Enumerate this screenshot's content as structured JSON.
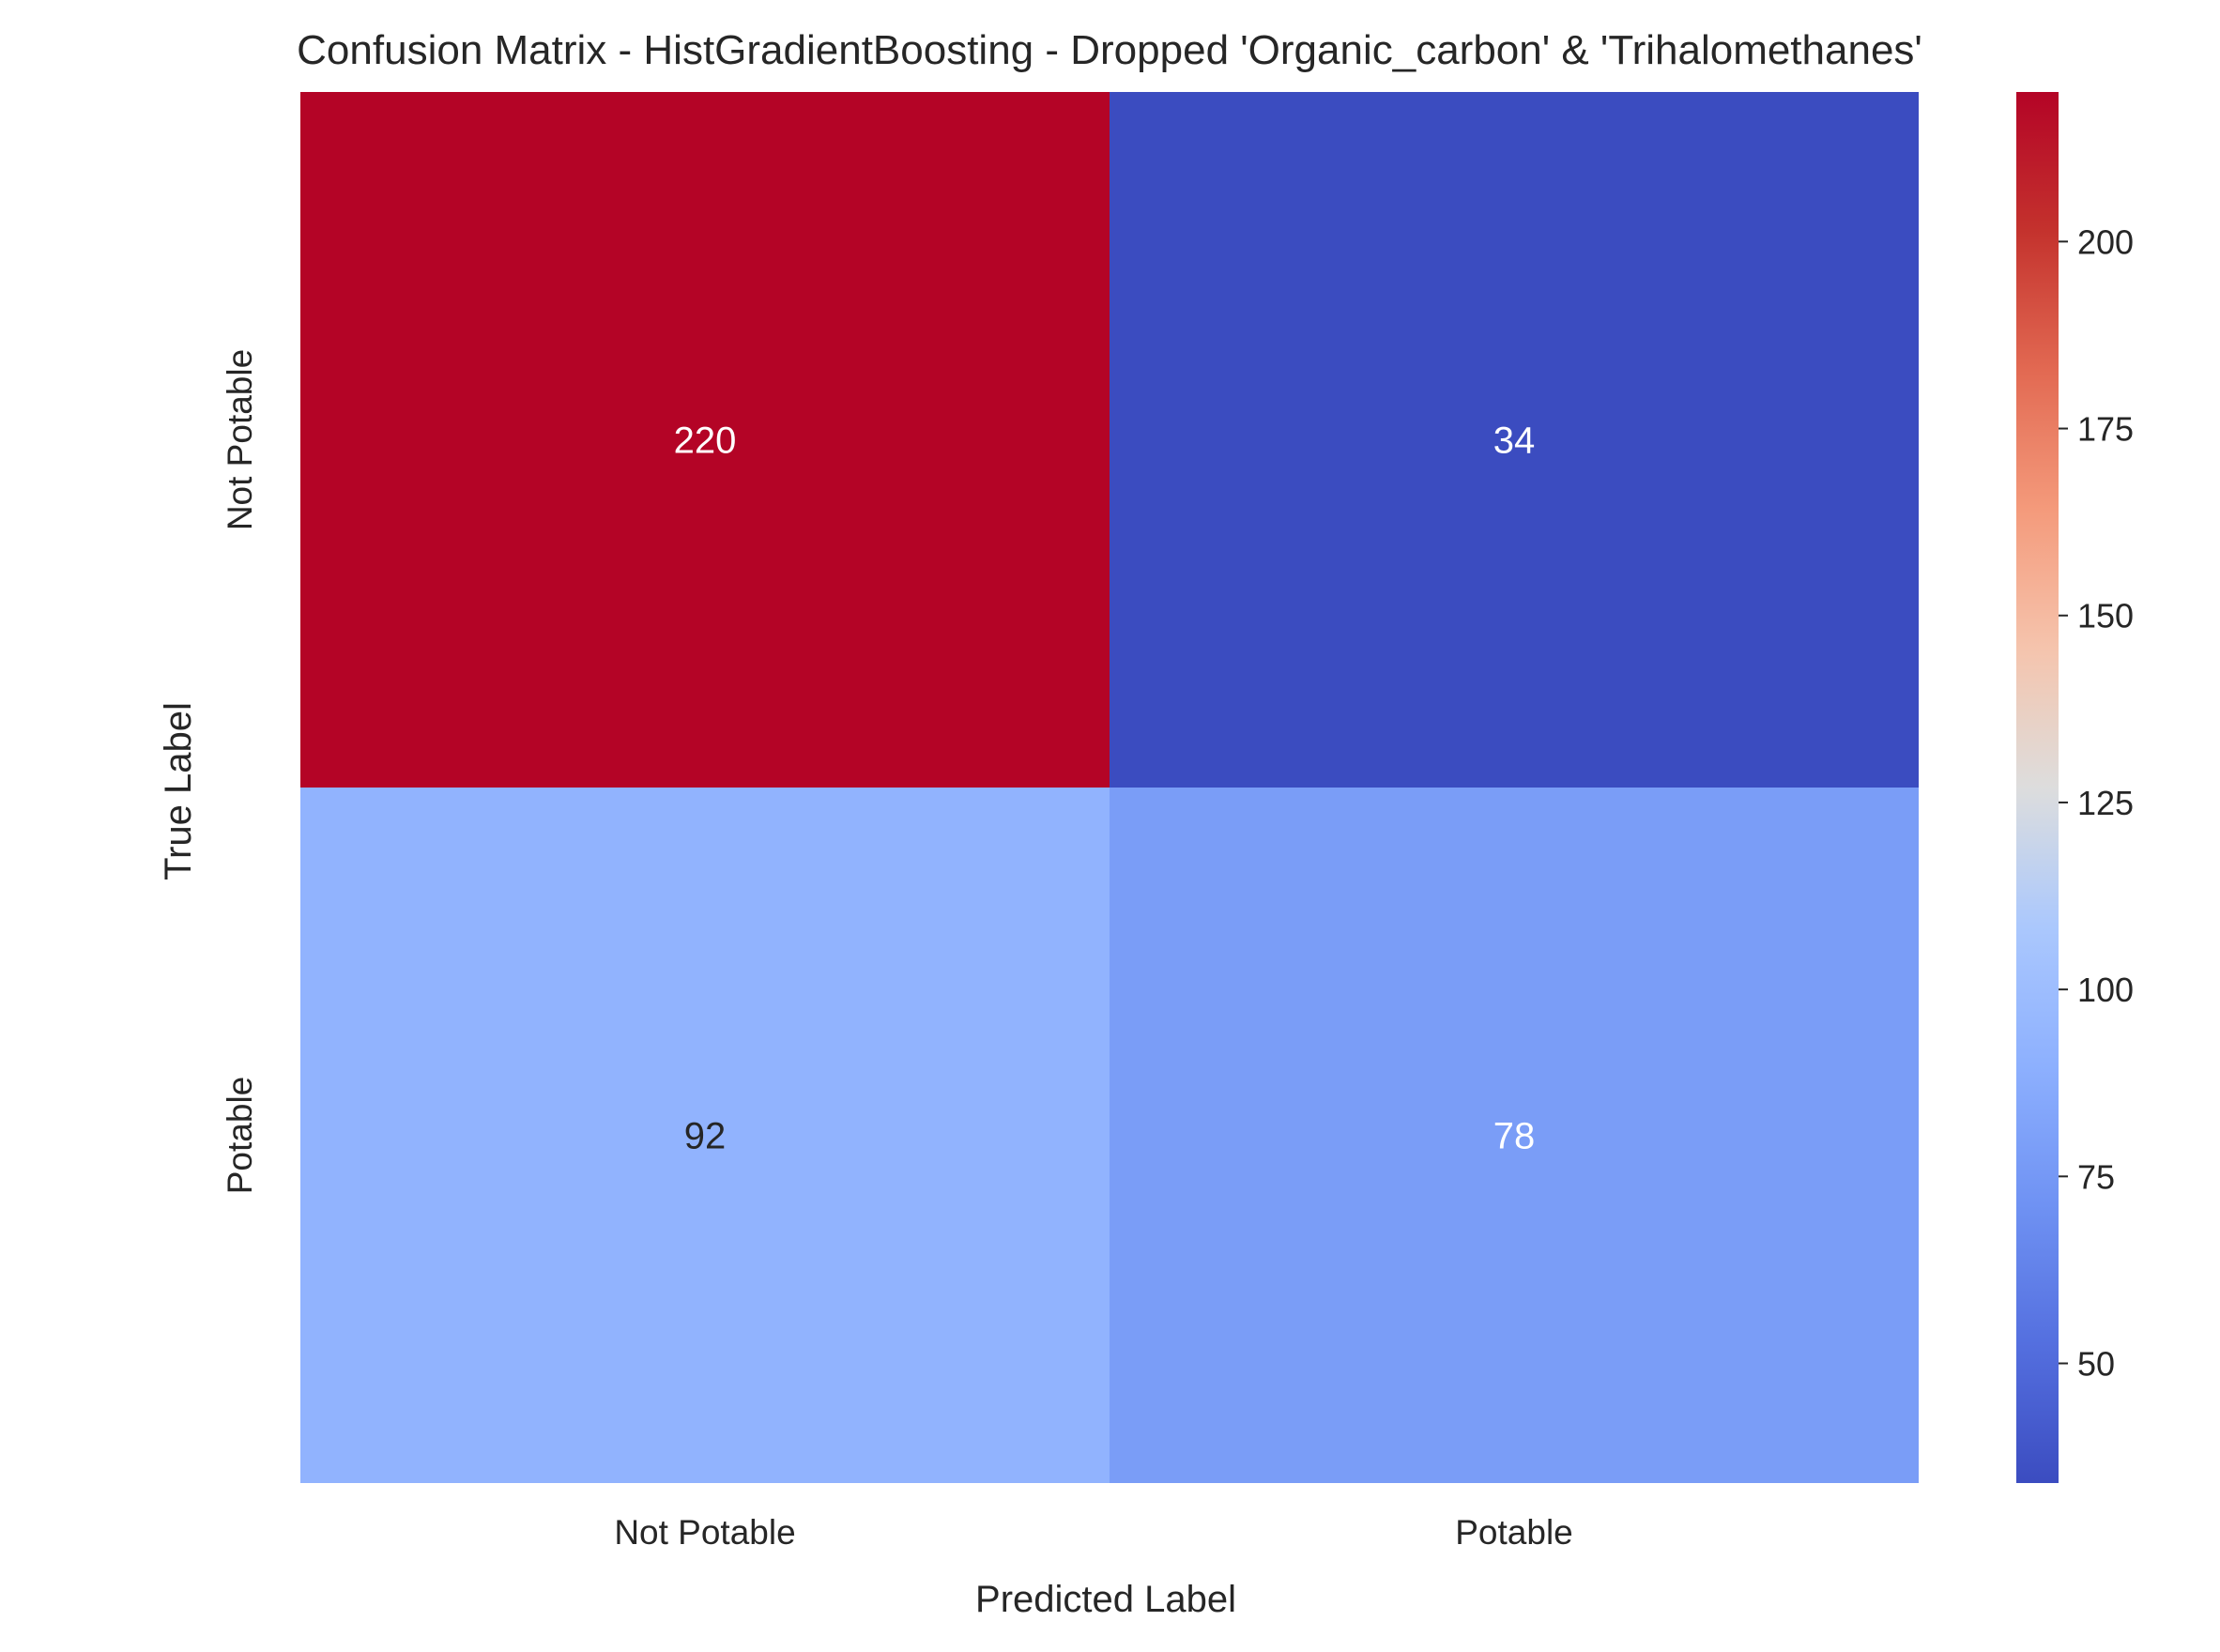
{
  "chart_data": {
    "type": "heatmap",
    "title": "Confusion Matrix - HistGradientBoosting - Dropped 'Organic_carbon' & 'Trihalomethanes'",
    "xlabel": "Predicted Label",
    "ylabel": "True Label",
    "x_categories": [
      "Not Potable",
      "Potable"
    ],
    "y_categories": [
      "Not Potable",
      "Potable"
    ],
    "values": [
      [
        220,
        34
      ],
      [
        92,
        78
      ]
    ],
    "colormap": "coolwarm",
    "vmin": 34,
    "vmax": 220,
    "colorbar_ticks": [
      50,
      75,
      100,
      125,
      150,
      175,
      200
    ],
    "annotation_colors": {
      "light": "#ffffff",
      "dark": "#262626"
    },
    "text_color": "#262626"
  }
}
